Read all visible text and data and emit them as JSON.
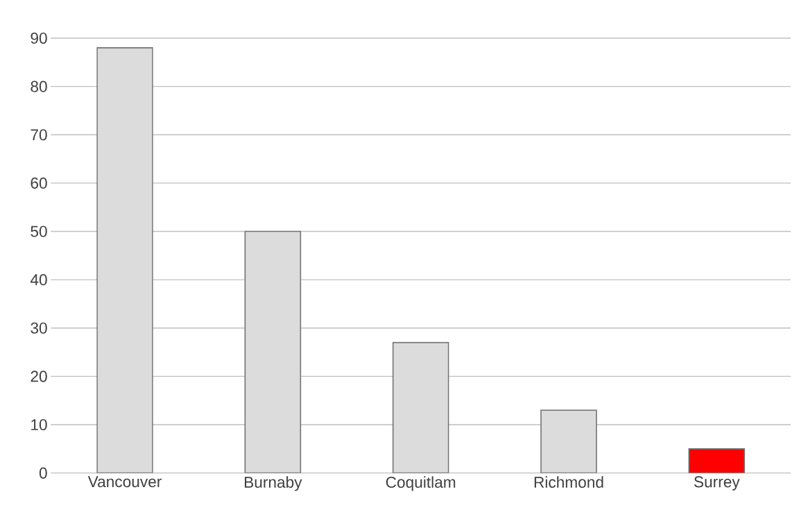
{
  "chart_data": {
    "type": "bar",
    "categories": [
      "Vancouver",
      "Burnaby",
      "Coquitlam",
      "Richmond",
      "Surrey"
    ],
    "values": [
      88,
      50,
      27,
      13,
      5
    ],
    "colors": [
      "#dcdcdc",
      "#dcdcdc",
      "#dcdcdc",
      "#dcdcdc",
      "#ff0000"
    ],
    "ylim": [
      0,
      90
    ],
    "yticks": [
      0,
      10,
      20,
      30,
      40,
      50,
      60,
      70,
      80,
      90
    ],
    "grid": "y"
  }
}
